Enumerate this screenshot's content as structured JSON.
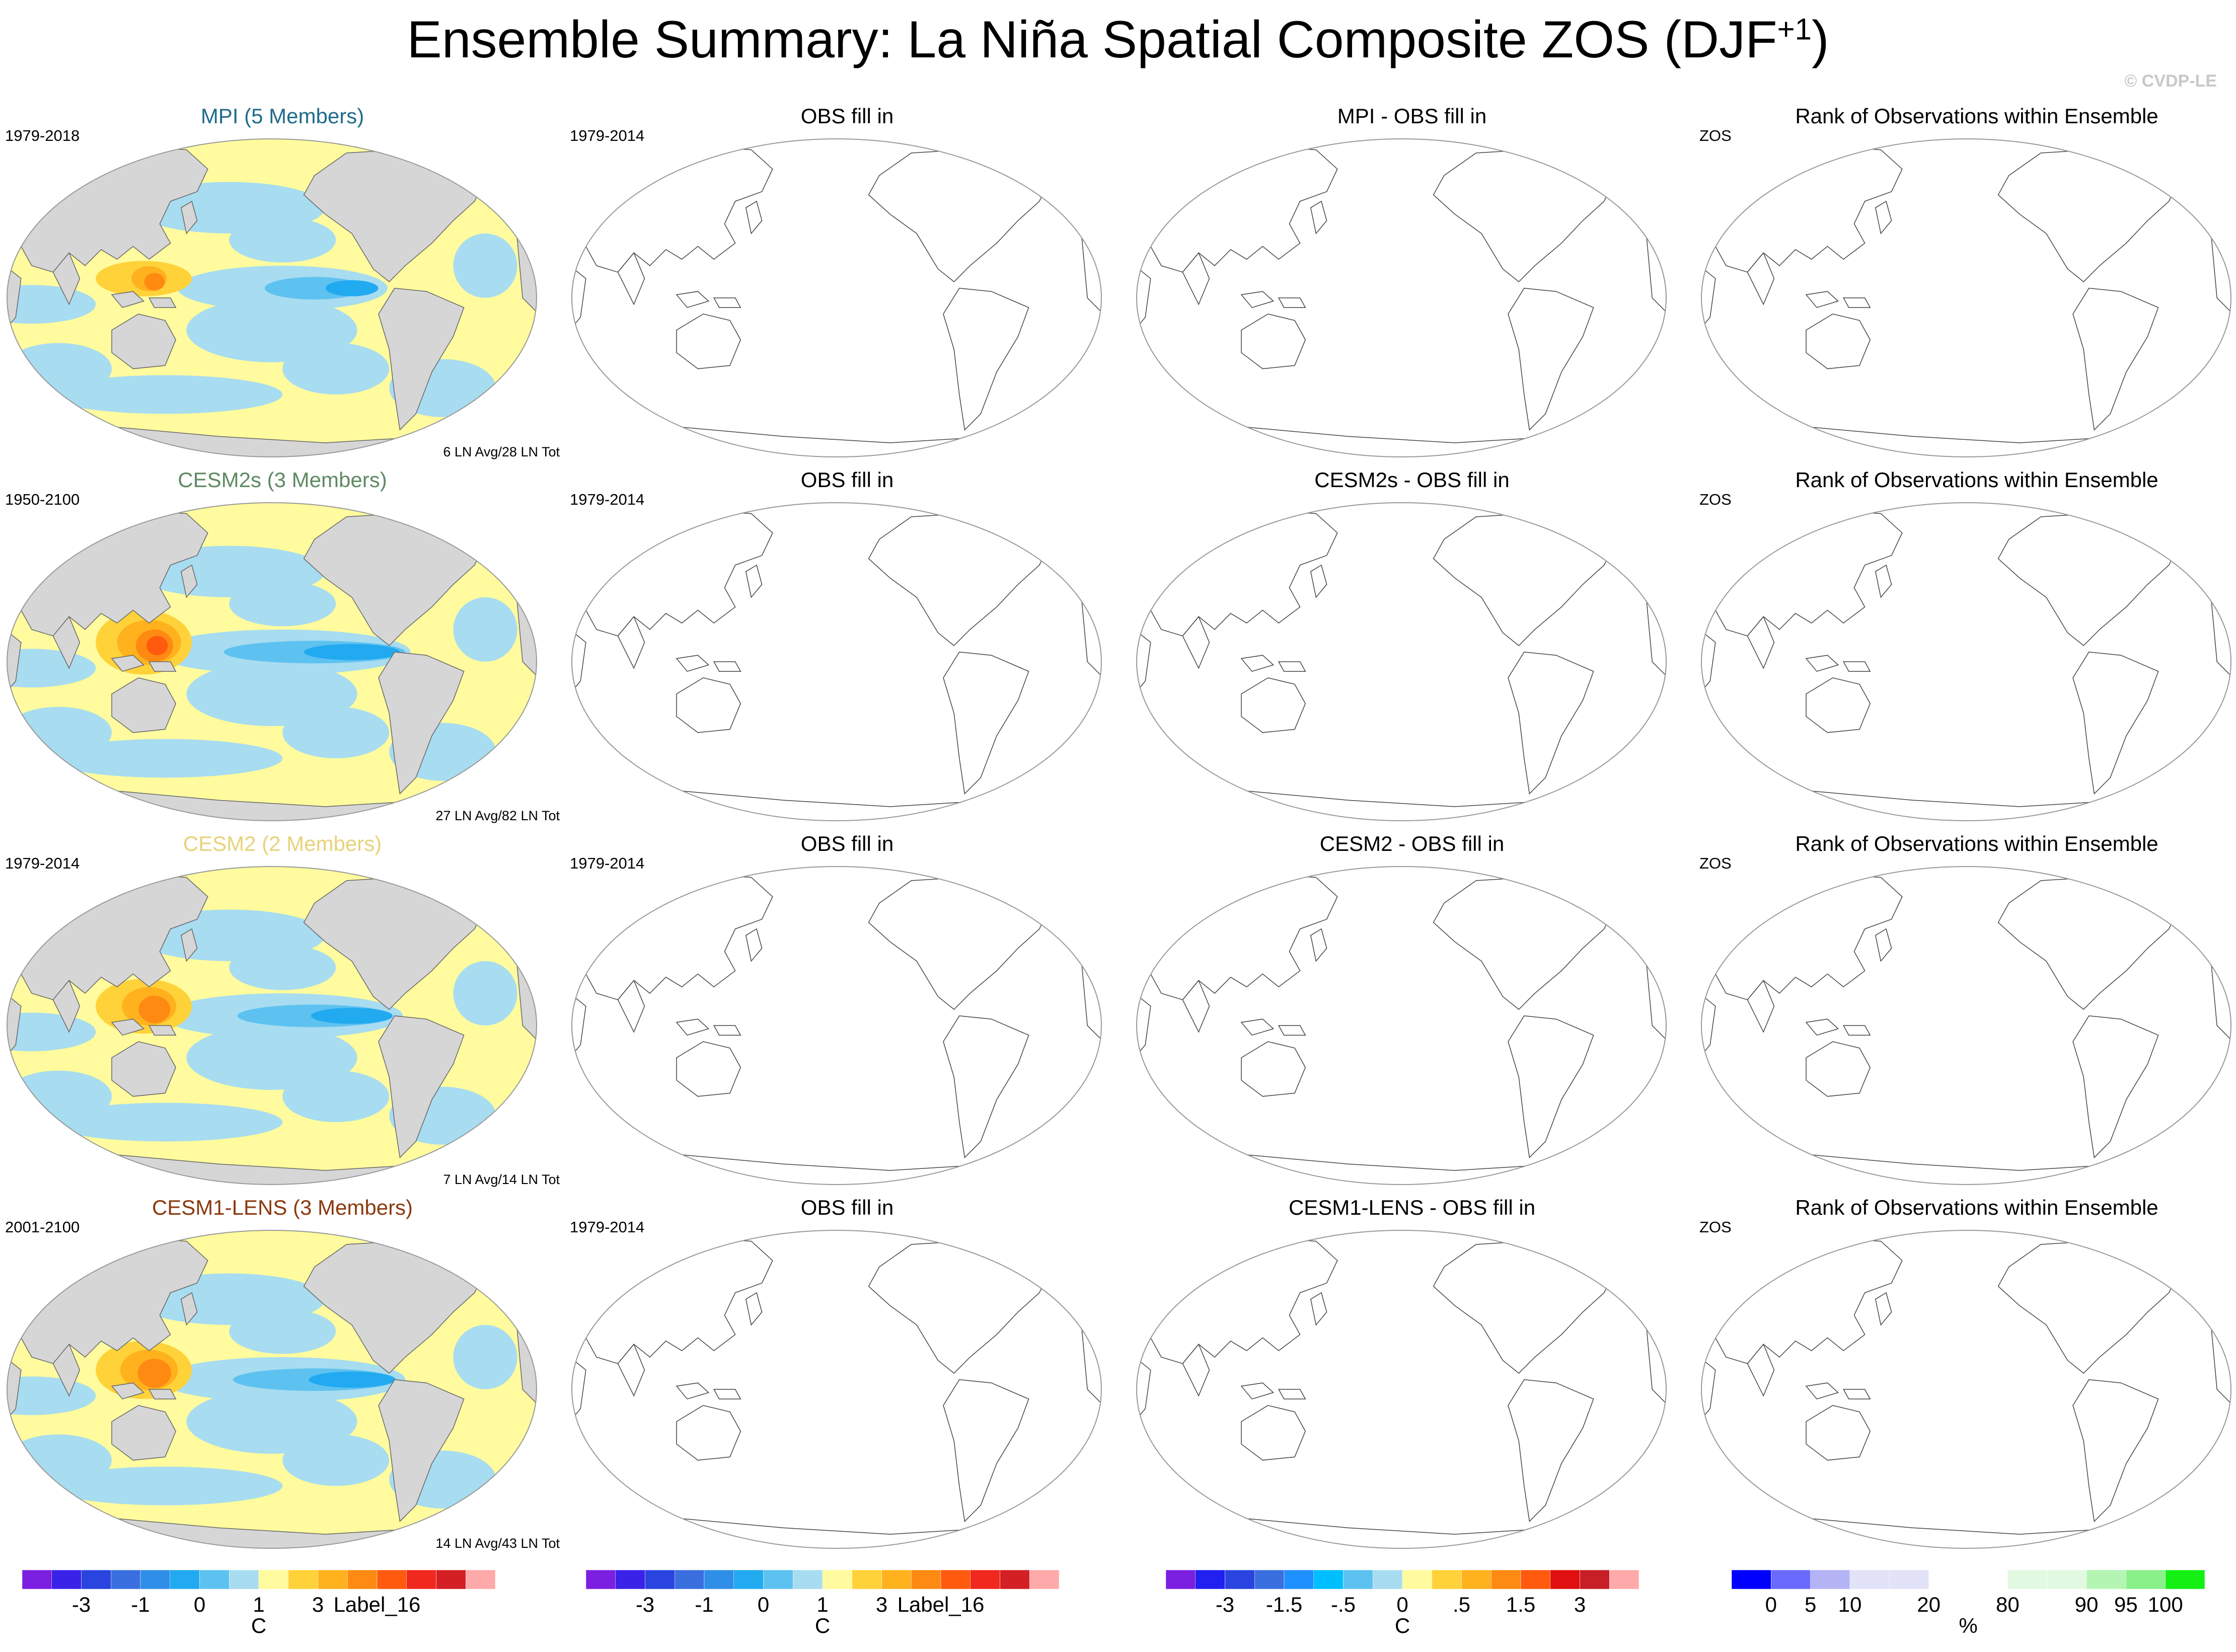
{
  "title": {
    "text": "Ensemble Summary: La Niña Spatial Composite ZOS (DJF",
    "sup": "+1",
    "close": ")"
  },
  "watermark": "© CVDP-LE",
  "rows": [
    {
      "model": {
        "title": "MPI (5 Members)",
        "title_color": "#1f6b8c",
        "period": "1979-2018",
        "footer": "6 LN Avg/28 LN Tot",
        "intensity": 0.55
      },
      "obs": {
        "title": "OBS fill in",
        "period": "1979-2014"
      },
      "diff": {
        "title": "MPI - OBS fill in"
      },
      "rank": {
        "title": "Rank of Observations within Ensemble",
        "label": "ZOS"
      }
    },
    {
      "model": {
        "title": "CESM2s (3 Members)",
        "title_color": "#5e8a62",
        "period": "1950-2100",
        "footer": "27 LN Avg/82 LN Tot",
        "intensity": 1.0
      },
      "obs": {
        "title": "OBS fill in",
        "period": "1979-2014"
      },
      "diff": {
        "title": "CESM2s - OBS fill in"
      },
      "rank": {
        "title": "Rank of Observations within Ensemble",
        "label": "ZOS"
      }
    },
    {
      "model": {
        "title": "CESM2 (2 Members)",
        "title_color": "#e8d27a",
        "period": "1979-2014",
        "footer": "7 LN Avg/14 LN Tot",
        "intensity": 0.85
      },
      "obs": {
        "title": "OBS fill in",
        "period": "1979-2014"
      },
      "diff": {
        "title": "CESM2 - OBS fill in"
      },
      "rank": {
        "title": "Rank of Observations within Ensemble",
        "label": "ZOS"
      }
    },
    {
      "model": {
        "title": "CESM1-LENS (3 Members)",
        "title_color": "#8b3a0f",
        "period": "2001-2100",
        "footer": "14 LN Avg/43 LN Tot",
        "intensity": 0.9
      },
      "obs": {
        "title": "OBS fill in",
        "period": "1979-2014"
      },
      "diff": {
        "title": "CESM1-LENS - OBS fill in"
      },
      "rank": {
        "title": "Rank of Observations within Ensemble",
        "label": "ZOS"
      }
    }
  ],
  "colorbars": [
    {
      "units": "C",
      "colors": [
        "#7b1fe0",
        "#3a22e8",
        "#2a44e0",
        "#3a6fe0",
        "#2f8ee8",
        "#22aaf0",
        "#5ec2f0",
        "#a8dcf0",
        "#fffb9e",
        "#ffd23a",
        "#ffb21e",
        "#ff8a12",
        "#ff5a0e",
        "#f0281e",
        "#d41f25",
        "#ffaaaa"
      ],
      "labels": [
        "-3",
        "-1",
        "0",
        "1",
        "3",
        "Label_16"
      ],
      "label_slots": [
        2,
        4,
        6,
        8,
        10,
        12
      ]
    },
    {
      "units": "C",
      "colors": [
        "#7b1fe0",
        "#3a22e8",
        "#2a44e0",
        "#3a6fe0",
        "#2f8ee8",
        "#22aaf0",
        "#5ec2f0",
        "#a8dcf0",
        "#fffb9e",
        "#ffd23a",
        "#ffb21e",
        "#ff8a12",
        "#ff5a0e",
        "#f0281e",
        "#d41f25",
        "#ffaaaa"
      ],
      "labels": [
        "-3",
        "-1",
        "0",
        "1",
        "3",
        "Label_16"
      ],
      "label_slots": [
        2,
        4,
        6,
        8,
        10,
        12
      ]
    },
    {
      "units": "C",
      "colors": [
        "#7b1fe0",
        "#2020f0",
        "#2a44e0",
        "#3a6fe0",
        "#1e90ff",
        "#00bfff",
        "#5ec2f0",
        "#a8dcf0",
        "#fffb9e",
        "#ffd23a",
        "#ffb21e",
        "#ff8a12",
        "#ff5a0e",
        "#e01010",
        "#c81e25",
        "#ffaaaa"
      ],
      "labels": [
        "-3",
        "-1.5",
        "-.5",
        "0",
        ".5",
        "1.5",
        "3"
      ],
      "label_slots": [
        2,
        4,
        6,
        8,
        10,
        12,
        14
      ]
    },
    {
      "units": "%",
      "colors": [
        "#0000ff",
        "#6a6aff",
        "#b4b4f5",
        "#e2e2f8",
        "#e2e2f8",
        "#ffffff",
        "#ffffff",
        "#e2fae2",
        "#e2fae2",
        "#b4f5b4",
        "#8af08a",
        "#14f014"
      ],
      "labels": [
        "0",
        "5",
        "10",
        "20",
        "80",
        "90",
        "95",
        "100"
      ],
      "label_slots": [
        1,
        2,
        3,
        5,
        7,
        9,
        10,
        11
      ]
    }
  ]
}
